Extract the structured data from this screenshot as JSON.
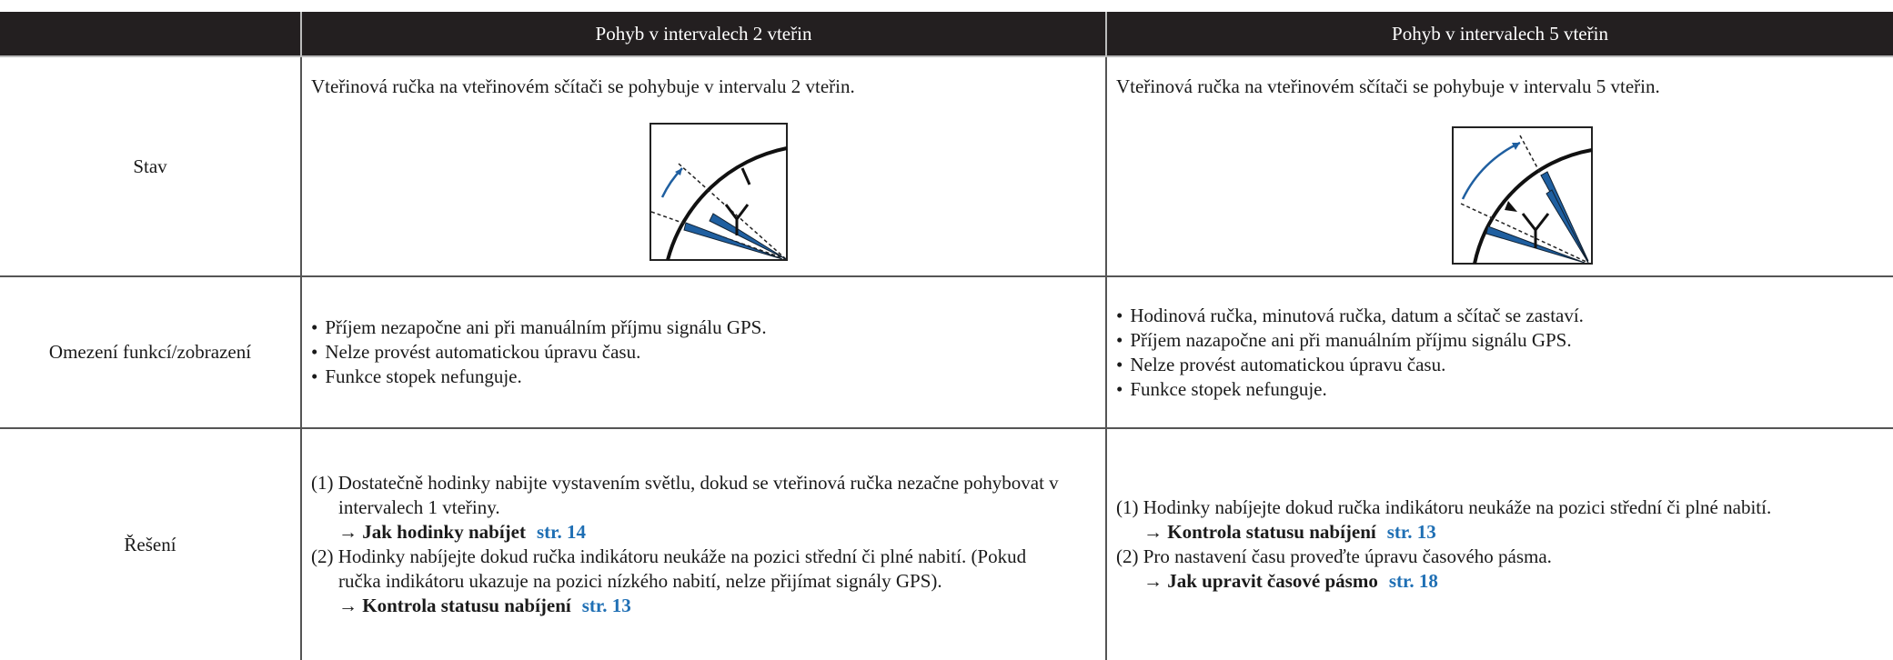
{
  "table": {
    "header": [
      "Pohyb v intervalech 2 vteřin",
      "Pohyb v intervalech 5 vteřin"
    ],
    "rows": [
      {
        "label": "Stav",
        "cells": [
          {
            "text": "Vteřinová ručka na vteřinovém sčítači se pohybuje v intervalu 2 vteřin."
          },
          {
            "text": "Vteřinová ručka na vteřinovém sčítači se pohybuje v intervalu 5 vteřin."
          }
        ]
      },
      {
        "label": "Omezení funkcí/zobrazení",
        "cells": [
          {
            "bullets": [
              "Příjem nezapočne ani při manuálním příjmu signálu GPS.",
              "Nelze provést automatickou úpravu času.",
              "Funkce stopek nefunguje."
            ]
          },
          {
            "bullets": [
              "Hodinová ručka, minutová ručka, datum a sčítač se zastaví.",
              "Příjem nazapočne ani při manuálním příjmu signálu GPS.",
              "Nelze provést automatickou úpravu času.",
              "Funkce stopek nefunguje."
            ]
          }
        ]
      },
      {
        "label": "Řešení",
        "cells": [
          {
            "steps": [
              {
                "text": "(1) Dostatečně hodinky nabijte vystavením světlu, dokud se vteřinová ručka nezačne pohybovat v intervalech 1 vteřiny.",
                "ref": "→ Jak hodinky nabíjet",
                "page": "str.   14"
              },
              {
                "text": "(2) Hodinky nabíjejte dokud ručka indikátoru neukáže na pozici střední či plné nabití. (Pokud ručka indikátoru ukazuje na pozici nízkého nabití, nelze přijímat signály GPS).",
                "ref": "→ Kontrola statusu nabíjení",
                "page": "str. 13"
              }
            ]
          },
          {
            "steps": [
              {
                "text": "(1) Hodinky nabíjejte dokud ručka indikátoru neukáže na pozici střední či plné nabití.",
                "ref": "→ Kontrola statusu nabíjení",
                "page": "str.   13"
              },
              {
                "text": "(2) Pro nastavení času proveďte úpravu časového pásma.",
                "ref": "→ Jak upravit časové pásmo",
                "page": "str. 18"
              }
            ]
          }
        ]
      }
    ]
  }
}
